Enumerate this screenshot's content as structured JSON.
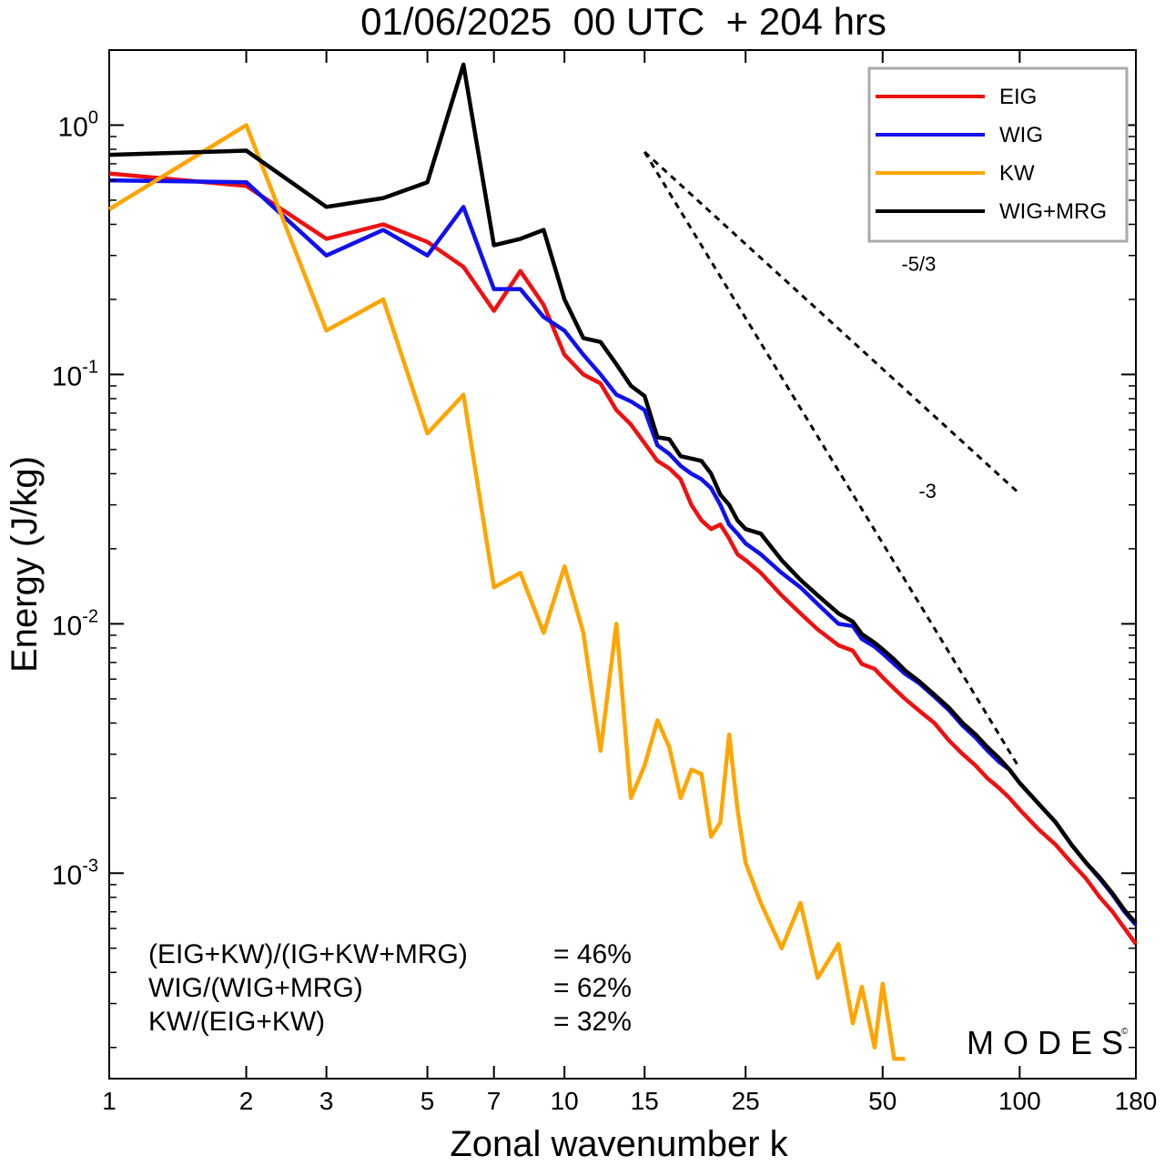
{
  "chart_data": {
    "type": "line",
    "title": "01/06/2025  00 UTC  + 204 hrs",
    "xlabel": "Zonal wavenumber k",
    "ylabel": "Energy (J/kg)",
    "x_scale": "log",
    "y_scale": "log",
    "xlim": [
      1,
      180
    ],
    "ylim": [
      0.00015,
      2.0
    ],
    "x_ticks": [
      1,
      2,
      3,
      5,
      7,
      10,
      15,
      25,
      50,
      100,
      180
    ],
    "x_tick_labels": [
      "1",
      "2",
      "3",
      "5",
      "7",
      "10",
      "15",
      "25",
      "50",
      "100",
      "180"
    ],
    "y_ticks": [
      1,
      0.1,
      0.01,
      0.001
    ],
    "y_tick_bases": [
      "10",
      "10",
      "10",
      "10"
    ],
    "y_tick_exponents": [
      "0",
      "-1",
      "-2",
      "-3"
    ],
    "legend_position": "top-right",
    "grid": false,
    "series": [
      {
        "name": "EIG",
        "color": "#ee1111",
        "x": [
          1,
          2,
          3,
          4,
          5,
          6,
          7,
          8,
          9,
          10,
          11,
          12,
          13,
          14,
          15,
          16,
          17,
          18,
          19,
          20,
          21,
          22,
          23,
          24,
          25,
          27,
          30,
          33,
          36,
          40,
          43,
          45,
          48,
          50,
          53,
          56,
          60,
          65,
          70,
          75,
          80,
          85,
          90,
          95,
          100,
          110,
          120,
          130,
          140,
          150,
          160,
          170,
          180
        ],
        "y": [
          0.64,
          0.57,
          0.35,
          0.4,
          0.34,
          0.27,
          0.18,
          0.26,
          0.19,
          0.12,
          0.1,
          0.092,
          0.072,
          0.063,
          0.053,
          0.045,
          0.042,
          0.038,
          0.03,
          0.026,
          0.024,
          0.025,
          0.022,
          0.019,
          0.018,
          0.016,
          0.013,
          0.011,
          0.0095,
          0.0082,
          0.0078,
          0.0069,
          0.0066,
          0.0061,
          0.0055,
          0.005,
          0.0045,
          0.004,
          0.0034,
          0.003,
          0.0027,
          0.0024,
          0.0022,
          0.002,
          0.0018,
          0.0015,
          0.0013,
          0.0011,
          0.00095,
          0.0008,
          0.0007,
          0.0006,
          0.00052
        ]
      },
      {
        "name": "WIG",
        "color": "#1111ee",
        "x": [
          1,
          2,
          3,
          4,
          5,
          6,
          7,
          8,
          9,
          10,
          11,
          12,
          13,
          14,
          15,
          16,
          17,
          18,
          19,
          20,
          21,
          22,
          23,
          24,
          25,
          27,
          30,
          33,
          36,
          40,
          43,
          45,
          48,
          50,
          53,
          56,
          60,
          65,
          70,
          75,
          80,
          85,
          90,
          95,
          100,
          110,
          120,
          130,
          140,
          150,
          160,
          170,
          180
        ],
        "y": [
          0.6,
          0.59,
          0.3,
          0.38,
          0.3,
          0.47,
          0.22,
          0.22,
          0.17,
          0.15,
          0.12,
          0.1,
          0.083,
          0.078,
          0.072,
          0.052,
          0.048,
          0.043,
          0.04,
          0.038,
          0.035,
          0.03,
          0.025,
          0.023,
          0.021,
          0.019,
          0.016,
          0.014,
          0.012,
          0.01,
          0.0098,
          0.0087,
          0.0081,
          0.0076,
          0.0069,
          0.0063,
          0.0058,
          0.0051,
          0.0045,
          0.0039,
          0.0035,
          0.0031,
          0.0028,
          0.0026,
          0.0023,
          0.0019,
          0.0016,
          0.0013,
          0.0011,
          0.00095,
          0.00082,
          0.0007,
          0.00062
        ]
      },
      {
        "name": "KW",
        "color": "#ffa500",
        "x": [
          1,
          2,
          3,
          4,
          5,
          6,
          7,
          8,
          9,
          10,
          11,
          12,
          13,
          14,
          15,
          16,
          17,
          18,
          19,
          20,
          21,
          22,
          23,
          24,
          25,
          27,
          30,
          33,
          36,
          40,
          43,
          45,
          48,
          50,
          53,
          56
        ],
        "y": [
          0.46,
          1.0,
          0.15,
          0.2,
          0.058,
          0.083,
          0.014,
          0.016,
          0.0092,
          0.017,
          0.0092,
          0.0031,
          0.01,
          0.002,
          0.0027,
          0.0041,
          0.0032,
          0.002,
          0.0026,
          0.0025,
          0.0014,
          0.0016,
          0.0036,
          0.0018,
          0.0011,
          0.00076,
          0.0005,
          0.00076,
          0.00038,
          0.00052,
          0.00025,
          0.00035,
          0.0002,
          0.00036,
          0.00018,
          0.00018
        ]
      },
      {
        "name": "WIG+MRG",
        "color": "#000000",
        "x": [
          1,
          2,
          3,
          4,
          5,
          6,
          7,
          8,
          9,
          10,
          11,
          12,
          13,
          14,
          15,
          16,
          17,
          18,
          19,
          20,
          21,
          22,
          23,
          24,
          25,
          27,
          30,
          33,
          36,
          40,
          43,
          45,
          48,
          50,
          53,
          56,
          60,
          65,
          70,
          75,
          80,
          85,
          90,
          95,
          100,
          110,
          120,
          130,
          140,
          150,
          160,
          170,
          180
        ],
        "y": [
          0.76,
          0.79,
          0.47,
          0.51,
          0.59,
          1.75,
          0.33,
          0.35,
          0.38,
          0.2,
          0.14,
          0.135,
          0.11,
          0.09,
          0.082,
          0.056,
          0.055,
          0.047,
          0.046,
          0.045,
          0.04,
          0.033,
          0.03,
          0.026,
          0.024,
          0.023,
          0.018,
          0.015,
          0.013,
          0.011,
          0.0102,
          0.0091,
          0.0084,
          0.0079,
          0.0072,
          0.0065,
          0.0059,
          0.0052,
          0.0046,
          0.004,
          0.0036,
          0.0032,
          0.0029,
          0.0026,
          0.0023,
          0.0019,
          0.0016,
          0.0013,
          0.0011,
          0.00096,
          0.00083,
          0.00071,
          0.00063
        ]
      }
    ],
    "reference_lines": [
      {
        "label": "-5/3",
        "slope": -1.6667,
        "x": [
          15,
          100
        ],
        "y": [
          0.78,
          0.0332
        ]
      },
      {
        "label": "-3",
        "slope": -3,
        "x": [
          15,
          100
        ],
        "y": [
          0.78,
          0.00263
        ]
      }
    ],
    "reference_line_label_positions": [
      {
        "label": "-5/3",
        "x": 55,
        "y": 0.26
      },
      {
        "label": "-3",
        "x": 60,
        "y": 0.032
      }
    ],
    "annotations": [
      {
        "text": "(EIG+KW)/(IG+KW+MRG)",
        "value": "= 46%"
      },
      {
        "text": "WIG/(WIG+MRG)",
        "value": "= 62%"
      },
      {
        "text": "KW/(EIG+KW)",
        "value": "= 32%"
      }
    ]
  },
  "watermark": {
    "text": "MODES",
    "mark": "©",
    "color": "#555555"
  }
}
